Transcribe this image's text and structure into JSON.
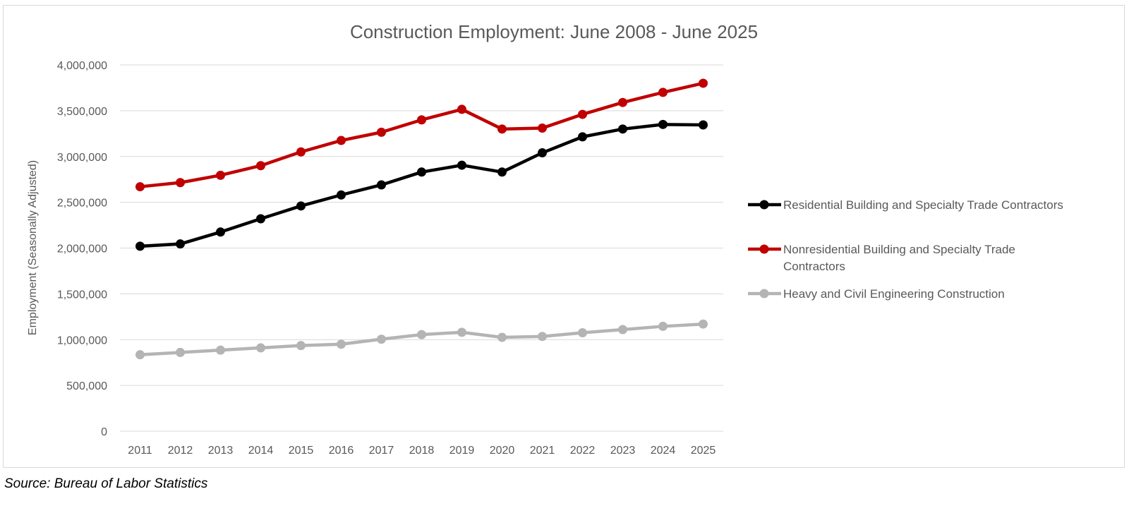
{
  "source_note": "Source: Bureau of Labor Statistics",
  "chart_data": {
    "type": "line",
    "title": "Construction Employment: June 2008 - June 2025",
    "xlabel": "",
    "ylabel": "Employment (Seasonally Adjusted)",
    "ylim": [
      0,
      4000000
    ],
    "y_ticks": [
      "0",
      "500,000",
      "1,000,000",
      "1,500,000",
      "2,000,000",
      "2,500,000",
      "3,000,000",
      "3,500,000",
      "4,000,000"
    ],
    "grid": true,
    "legend_position": "right",
    "categories": [
      "2011",
      "2012",
      "2013",
      "2014",
      "2015",
      "2016",
      "2017",
      "2018",
      "2019",
      "2020",
      "2021",
      "2022",
      "2023",
      "2024",
      "2025"
    ],
    "series": [
      {
        "name": "Residential Building and Specialty Trade Contractors",
        "color": "#000000",
        "values": [
          2020000,
          2045000,
          2175000,
          2320000,
          2460000,
          2580000,
          2690000,
          2830000,
          2905000,
          2830000,
          3040000,
          3215000,
          3300000,
          3350000,
          3345000
        ]
      },
      {
        "name": "Nonresidential Building and Specialty Trade Contractors",
        "color": "#c00000",
        "values": [
          2670000,
          2715000,
          2795000,
          2900000,
          3050000,
          3175000,
          3265000,
          3400000,
          3515000,
          3300000,
          3310000,
          3460000,
          3590000,
          3700000,
          3800000
        ]
      },
      {
        "name": "Heavy and Civil Engineering Construction",
        "color": "#b4b4b4",
        "values": [
          835000,
          860000,
          885000,
          910000,
          935000,
          950000,
          1005000,
          1055000,
          1080000,
          1025000,
          1035000,
          1075000,
          1110000,
          1145000,
          1170000
        ]
      }
    ]
  }
}
